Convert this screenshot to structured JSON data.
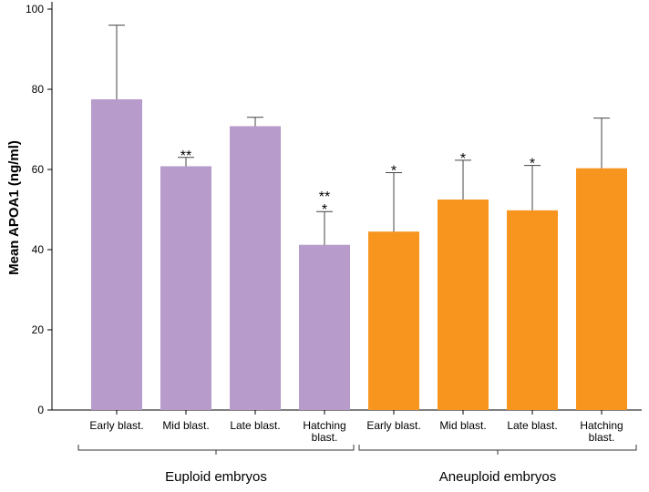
{
  "chart_data": {
    "type": "bar",
    "ylabel": "Mean APOA1 (ng/ml)",
    "xlabel": "",
    "ylim": [
      0,
      100
    ],
    "yticks": [
      0,
      20,
      40,
      60,
      80,
      100
    ],
    "grid": false,
    "error_bars": "upper",
    "groups": [
      {
        "name": "Euploid embryos",
        "color": "#b79bca",
        "bars": [
          {
            "category": [
              "Early blast."
            ],
            "value": 77.5,
            "error_top": 96,
            "sig": []
          },
          {
            "category": [
              "Mid blast."
            ],
            "value": 60.8,
            "error_top": 63,
            "sig": [
              "**"
            ]
          },
          {
            "category": [
              "Late blast."
            ],
            "value": 70.8,
            "error_top": 73,
            "sig": []
          },
          {
            "category": [
              "Hatching",
              "blast."
            ],
            "value": 41.2,
            "error_top": 49.5,
            "sig": [
              "**",
              "*"
            ]
          }
        ]
      },
      {
        "name": "Aneuploid embryos",
        "color": "#f7951e",
        "bars": [
          {
            "category": [
              "Early blast."
            ],
            "value": 44.5,
            "error_top": 59.2,
            "sig": [
              "*"
            ]
          },
          {
            "category": [
              "Mid blast."
            ],
            "value": 52.5,
            "error_top": 62.3,
            "sig": [
              "*"
            ]
          },
          {
            "category": [
              "Late blast."
            ],
            "value": 49.8,
            "error_top": 61,
            "sig": [
              "*"
            ]
          },
          {
            "category": [
              "Hatching",
              "blast."
            ],
            "value": 60.3,
            "error_top": 72.8,
            "sig": []
          }
        ]
      }
    ]
  }
}
